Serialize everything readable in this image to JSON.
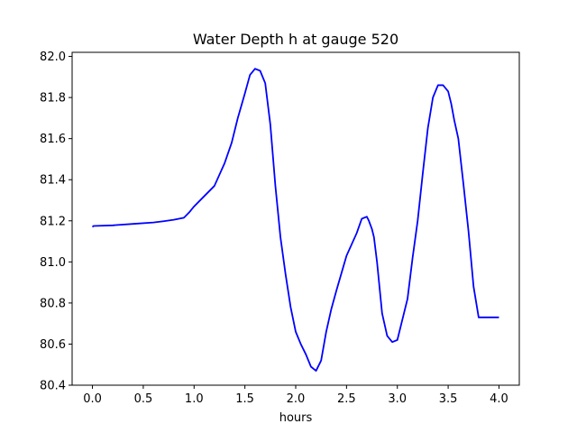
{
  "chart_data": {
    "type": "line",
    "title": "Water Depth h at gauge 520",
    "xlabel": "hours",
    "ylabel": "",
    "xlim": [
      -0.2,
      4.2
    ],
    "ylim": [
      80.4,
      82.02
    ],
    "xticks": [
      0.0,
      0.5,
      1.0,
      1.5,
      2.0,
      2.5,
      3.0,
      3.5,
      4.0
    ],
    "xtick_labels": [
      "0.0",
      "0.5",
      "1.0",
      "1.5",
      "2.0",
      "2.5",
      "3.0",
      "3.5",
      "4.0"
    ],
    "yticks": [
      80.4,
      80.6,
      80.8,
      81.0,
      81.2,
      81.4,
      81.6,
      81.8,
      82.0
    ],
    "ytick_labels": [
      "80.4",
      "80.6",
      "80.8",
      "81.0",
      "81.2",
      "81.4",
      "81.6",
      "81.8",
      "82.0"
    ],
    "grid": false,
    "series": [
      {
        "color": "#0000ff",
        "x": [
          0.0,
          0.01,
          0.2,
          0.4,
          0.6,
          0.7,
          0.8,
          0.9,
          0.95,
          1.0,
          1.1,
          1.2,
          1.3,
          1.37,
          1.43,
          1.5,
          1.55,
          1.6,
          1.65,
          1.7,
          1.75,
          1.8,
          1.85,
          1.9,
          1.95,
          2.0,
          2.05,
          2.1,
          2.15,
          2.2,
          2.25,
          2.3,
          2.35,
          2.4,
          2.5,
          2.6,
          2.65,
          2.7,
          2.72,
          2.75,
          2.77,
          2.8,
          2.85,
          2.9,
          2.95,
          3.0,
          3.1,
          3.15,
          3.2,
          3.25,
          3.3,
          3.35,
          3.4,
          3.45,
          3.5,
          3.53,
          3.56,
          3.6,
          3.65,
          3.7,
          3.75,
          3.8,
          3.85,
          3.9,
          3.95,
          4.0
        ],
        "y": [
          81.17,
          81.175,
          81.178,
          81.185,
          81.192,
          81.198,
          81.205,
          81.215,
          81.24,
          81.27,
          81.32,
          81.37,
          81.48,
          81.58,
          81.7,
          81.82,
          81.91,
          81.94,
          81.93,
          81.87,
          81.67,
          81.37,
          81.12,
          80.94,
          80.78,
          80.66,
          80.6,
          80.55,
          80.49,
          80.47,
          80.52,
          80.66,
          80.77,
          80.86,
          81.03,
          81.14,
          81.21,
          81.22,
          81.2,
          81.16,
          81.12,
          81.0,
          80.75,
          80.64,
          80.61,
          80.62,
          80.82,
          81.02,
          81.2,
          81.43,
          81.65,
          81.8,
          81.86,
          81.86,
          81.83,
          81.77,
          81.69,
          81.6,
          81.38,
          81.15,
          80.88,
          80.73,
          80.73,
          80.73,
          80.73,
          80.73
        ]
      }
    ]
  }
}
